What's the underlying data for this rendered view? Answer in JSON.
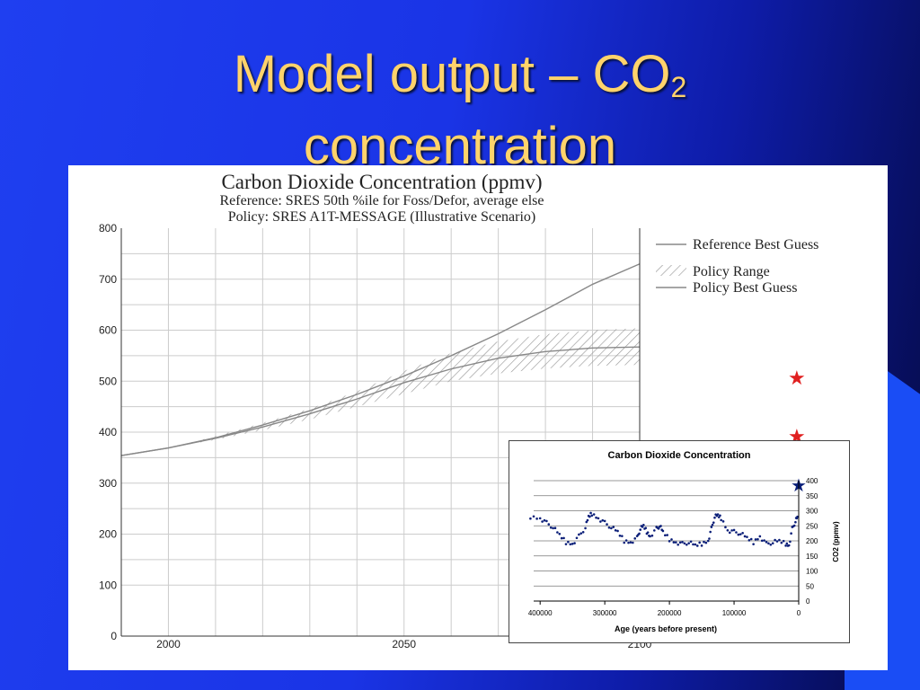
{
  "slide": {
    "title_main": "Model output – CO",
    "title_sub": "2",
    "title_line2": "concentration"
  },
  "chart_data": [
    {
      "type": "line",
      "title": "Carbon Dioxide Concentration (ppmv)",
      "subtitle_1": "Reference: SRES 50th %ile for Foss/Defor, average else",
      "subtitle_2": "Policy: SRES A1T-MESSAGE (Illustrative Scenario)",
      "xlim": [
        1990,
        2100
      ],
      "ylim": [
        0,
        800
      ],
      "y_ticks": [
        "0",
        "100",
        "200",
        "300",
        "400",
        "500",
        "600",
        "700",
        "800"
      ],
      "x_ticks": [
        "2000",
        "2050",
        "2100"
      ],
      "grid": true,
      "legend": "right",
      "legend_labels": [
        "Reference Best Guess",
        "Policy Range",
        "Policy Best Guess"
      ],
      "series": [
        {
          "name": "Reference Best Guess",
          "x": [
            1990,
            2000,
            2010,
            2020,
            2030,
            2040,
            2050,
            2060,
            2070,
            2080,
            2090,
            2100
          ],
          "values": [
            354,
            369,
            389,
            414,
            442,
            474,
            510,
            550,
            593,
            640,
            690,
            730
          ]
        },
        {
          "name": "Policy Best Guess",
          "x": [
            1990,
            2000,
            2010,
            2020,
            2030,
            2040,
            2050,
            2060,
            2070,
            2080,
            2090,
            2100
          ],
          "values": [
            354,
            369,
            388,
            410,
            436,
            465,
            497,
            524,
            545,
            558,
            565,
            567
          ]
        },
        {
          "name": "Policy Range",
          "x": [
            2000,
            2010,
            2020,
            2030,
            2040,
            2050,
            2060,
            2070,
            2080,
            2090,
            2100
          ],
          "low": [
            369,
            385,
            404,
            425,
            450,
            475,
            500,
            515,
            525,
            530,
            532
          ],
          "high": [
            369,
            392,
            418,
            446,
            480,
            520,
            555,
            578,
            592,
            600,
            604
          ]
        }
      ],
      "markers": [
        {
          "x": 2100,
          "y": 505,
          "color": "#e02020"
        },
        {
          "x": 2100,
          "y": 392,
          "color": "#e02020"
        }
      ]
    },
    {
      "type": "scatter",
      "title": "Carbon Dioxide Concentration",
      "xlabel": "Age (years before present)",
      "ylabel": "CO2 (ppmv)",
      "xlim": [
        410000,
        0
      ],
      "ylim": [
        0,
        400
      ],
      "x_ticks": [
        "400000",
        "300000",
        "200000",
        "100000",
        "0"
      ],
      "y_ticks": [
        "0",
        "50",
        "100",
        "150",
        "200",
        "250",
        "300",
        "350",
        "400"
      ],
      "grid": true,
      "series": [
        {
          "x": [
            415000,
            400000,
            390000,
            380000,
            370000,
            360000,
            350000,
            340000,
            330000,
            325000,
            320000,
            310000,
            300000,
            290000,
            280000,
            270000,
            260000,
            250000,
            245000,
            240000,
            235000,
            230000,
            220000,
            215000,
            210000,
            200000,
            190000,
            180000,
            170000,
            160000,
            150000,
            140000,
            135000,
            130000,
            125000,
            120000,
            110000,
            100000,
            90000,
            80000,
            70000,
            60000,
            50000,
            40000,
            30000,
            20000,
            15000,
            10000,
            5000,
            2000
          ],
          "values": [
            280,
            275,
            260,
            245,
            220,
            195,
            190,
            215,
            245,
            280,
            290,
            275,
            260,
            245,
            230,
            200,
            195,
            210,
            240,
            250,
            230,
            215,
            240,
            250,
            230,
            205,
            195,
            190,
            195,
            185,
            190,
            200,
            240,
            280,
            285,
            275,
            235,
            230,
            225,
            210,
            195,
            215,
            190,
            195,
            200,
            190,
            185,
            240,
            265,
            280
          ]
        }
      ],
      "marker": {
        "x": 0,
        "y": 385,
        "color": "#0a1e78"
      }
    }
  ]
}
